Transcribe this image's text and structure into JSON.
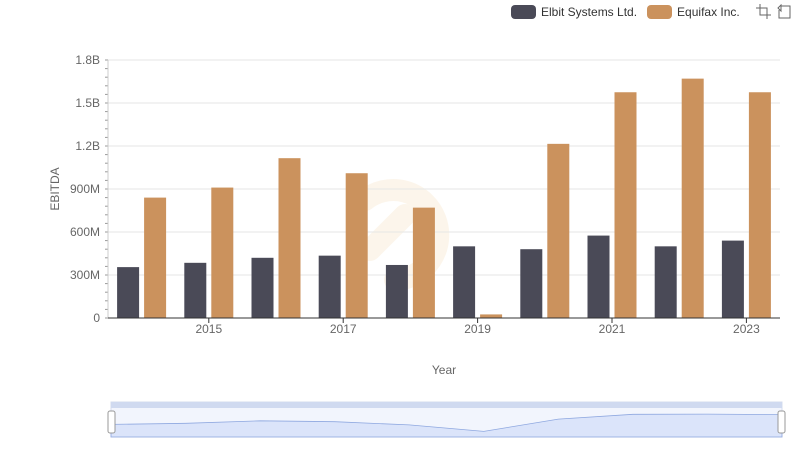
{
  "legend": {
    "items": [
      {
        "label": "Elbit Systems Ltd.",
        "color": "#4a4a57"
      },
      {
        "label": "Equifax Inc.",
        "color": "#cb925d"
      }
    ],
    "tools": [
      "zoom-icon",
      "restore-icon"
    ]
  },
  "chart_data": {
    "type": "bar",
    "categories": [
      "2014",
      "2015",
      "2016",
      "2017",
      "2018",
      "2019",
      "2020",
      "2021",
      "2022",
      "2023"
    ],
    "x_tick_labels": [
      "2015",
      "2017",
      "2019",
      "2021",
      "2023"
    ],
    "y_tick_labels": [
      "0",
      "300M",
      "600M",
      "900M",
      "1.2B",
      "1.5B",
      "1.8B"
    ],
    "xlabel": "Year",
    "ylabel": "EBITDA",
    "ylim": [
      0,
      1800000000
    ],
    "series": [
      {
        "name": "Elbit Systems Ltd.",
        "color": "#4a4a57",
        "values": [
          355000000,
          385000000,
          420000000,
          435000000,
          370000000,
          500000000,
          480000000,
          575000000,
          500000000,
          540000000
        ]
      },
      {
        "name": "Equifax Inc.",
        "color": "#cb925d",
        "values": [
          840000000,
          910000000,
          1115000000,
          1010000000,
          770000000,
          25000000,
          1215000000,
          1575000000,
          1670000000,
          1575000000
        ]
      }
    ],
    "grid": true,
    "legend_position": "top-right"
  }
}
